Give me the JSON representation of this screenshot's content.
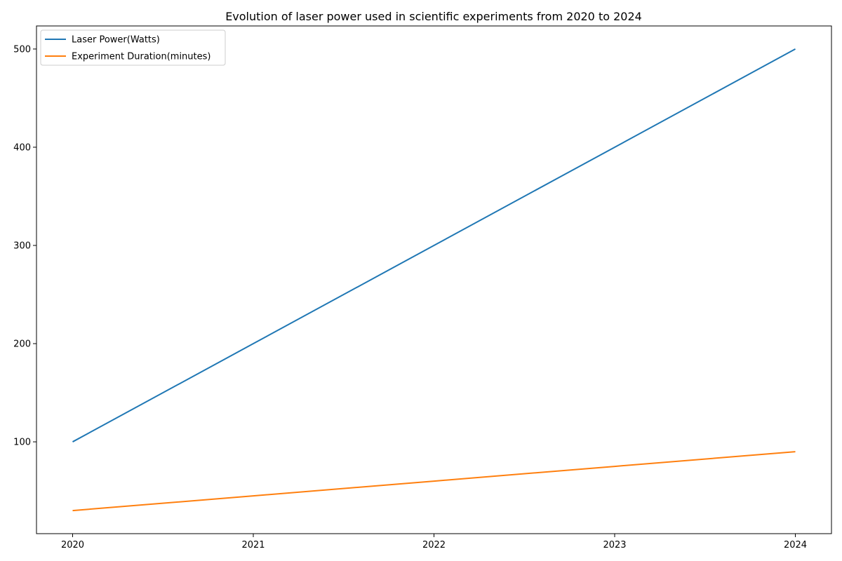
{
  "chart_data": {
    "type": "line",
    "title": "Evolution of laser power used in scientific experiments from 2020 to 2024",
    "xlabel": "",
    "ylabel": "",
    "x": [
      2020,
      2021,
      2022,
      2023,
      2024
    ],
    "x_tick_labels": [
      "2020",
      "2021",
      "2022",
      "2023",
      "2024"
    ],
    "y_ticks": [
      100,
      200,
      300,
      400,
      500
    ],
    "y_tick_labels": [
      "100",
      "200",
      "300",
      "400",
      "500"
    ],
    "xlim": [
      2019.8,
      2024.2
    ],
    "ylim": [
      6.5,
      523.5
    ],
    "grid": false,
    "legend_position": "top-left",
    "series": [
      {
        "name": "Laser Power(Watts)",
        "values": [
          100,
          200,
          300,
          400,
          500
        ],
        "color": "#1f77b4"
      },
      {
        "name": "Experiment Duration(minutes)",
        "values": [
          30,
          45,
          60,
          75,
          90
        ],
        "color": "#ff7f0e"
      }
    ]
  }
}
